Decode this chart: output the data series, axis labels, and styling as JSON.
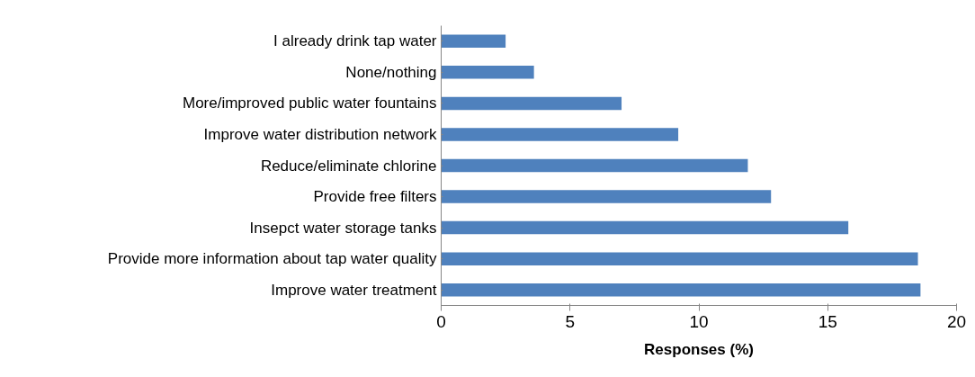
{
  "chart_data": {
    "type": "bar",
    "orientation": "horizontal",
    "xlabel": "Responses (%)",
    "categories": [
      "I already drink tap water",
      "None/nothing",
      "More/improved public water fountains",
      "Improve water distribution network",
      "Reduce/eliminate chlorine",
      "Provide free filters",
      "Insepct water storage tanks",
      "Provide more information about tap water quality",
      "Improve water treatment"
    ],
    "values": [
      2.5,
      3.6,
      7.0,
      9.2,
      11.9,
      12.8,
      15.8,
      18.5,
      18.6
    ],
    "color": "#4f81bd",
    "xlim": [
      0,
      20
    ],
    "xticks": [
      0,
      5,
      10,
      15,
      20
    ],
    "grid": false
  }
}
